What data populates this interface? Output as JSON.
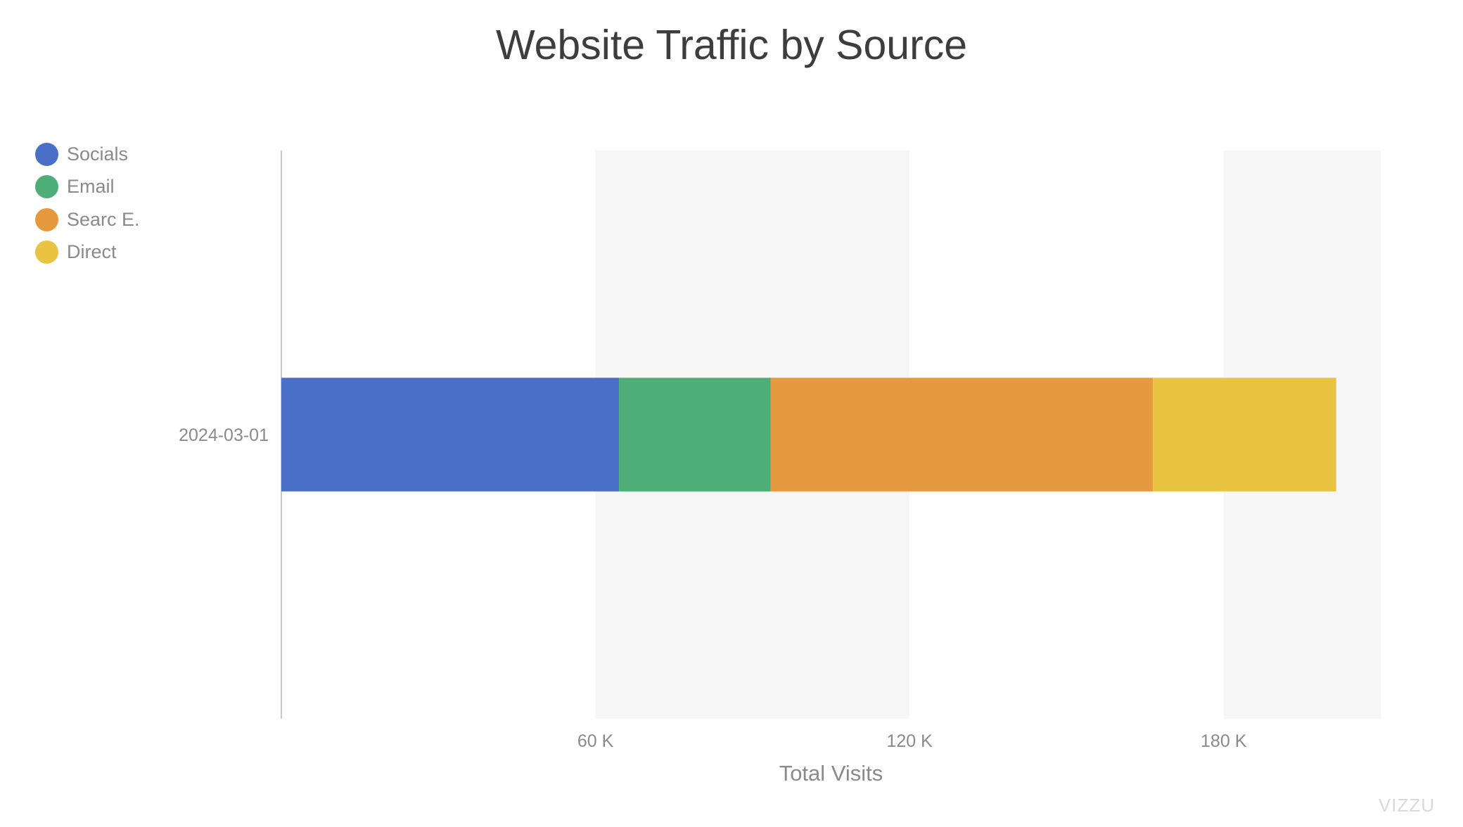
{
  "chart_data": {
    "type": "bar",
    "orientation": "horizontal",
    "stacked": true,
    "title": "Website Traffic by Source",
    "xlabel": "Total Visits",
    "ylabel": "",
    "categories": [
      "2024-03-01"
    ],
    "series": [
      {
        "name": "Socials",
        "color": "#4a6fc7",
        "values": [
          64500
        ]
      },
      {
        "name": "Email",
        "color": "#4fae78",
        "values": [
          29000
        ]
      },
      {
        "name": "Searc E.",
        "color": "#e69a3f",
        "values": [
          73000
        ]
      },
      {
        "name": "Direct",
        "color": "#e9c443",
        "values": [
          35000
        ]
      }
    ],
    "xlim": [
      0,
      210000
    ],
    "xticks": [
      60000,
      120000,
      180000
    ],
    "xtick_labels": [
      "60 K",
      "120 K",
      "180 K"
    ],
    "grid": "alternating bands",
    "legend_position": "top-left"
  },
  "watermark": "VIZZU"
}
